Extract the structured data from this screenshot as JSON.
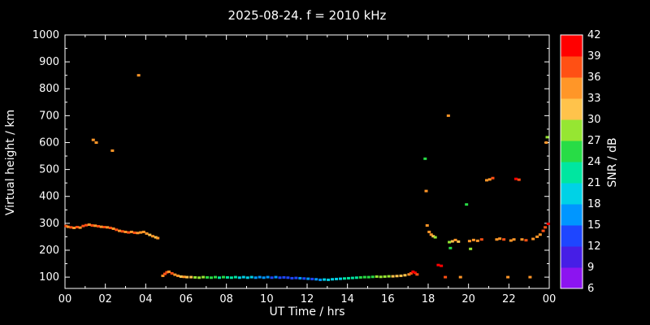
{
  "title": "2025-08-24. f = 2010 kHz",
  "axes": {
    "x_label": "UT Time / hrs",
    "y_label": "Virtual height / km",
    "x_ticks": [
      "00",
      "02",
      "04",
      "06",
      "08",
      "10",
      "12",
      "14",
      "16",
      "18",
      "20",
      "22",
      "00"
    ],
    "y_ticks": [
      "100",
      "200",
      "300",
      "400",
      "500",
      "600",
      "700",
      "800",
      "900",
      "1000"
    ]
  },
  "colorbar": {
    "label": "SNR / dB",
    "ticks": [
      "6",
      "9",
      "12",
      "15",
      "18",
      "21",
      "24",
      "27",
      "30",
      "33",
      "36",
      "39",
      "42"
    ],
    "colors": [
      "#8c14f0",
      "#461ee6",
      "#1e46ff",
      "#0096ff",
      "#00d2e6",
      "#00e6a0",
      "#28dc46",
      "#96e632",
      "#ffc34b",
      "#ff9628",
      "#ff5014",
      "#ff0000"
    ]
  },
  "chart_data": {
    "type": "scatter",
    "title": "2025-08-24. f = 2010 kHz",
    "xlabel": "UT Time / hrs",
    "ylabel": "Virtual height / km",
    "color_label": "SNR / dB",
    "x_range": [
      0,
      24
    ],
    "y_range": [
      58,
      1000
    ],
    "color_range": [
      6,
      42
    ],
    "background": "#000000",
    "points_t_h_snr": [
      [
        0.05,
        290,
        36
      ],
      [
        0.15,
        287,
        33
      ],
      [
        0.3,
        285,
        36
      ],
      [
        0.45,
        283,
        33
      ],
      [
        0.6,
        286,
        36
      ],
      [
        0.75,
        284,
        33
      ],
      [
        0.9,
        290,
        36
      ],
      [
        1.05,
        293,
        36
      ],
      [
        1.2,
        295,
        33
      ],
      [
        1.35,
        292,
        36
      ],
      [
        1.4,
        610,
        33
      ],
      [
        1.55,
        600,
        33
      ],
      [
        1.5,
        291,
        33
      ],
      [
        1.65,
        289,
        36
      ],
      [
        1.8,
        287,
        33
      ],
      [
        1.95,
        286,
        36
      ],
      [
        2.1,
        285,
        33
      ],
      [
        2.25,
        283,
        36
      ],
      [
        2.35,
        570,
        33
      ],
      [
        2.4,
        280,
        33
      ],
      [
        2.55,
        276,
        36
      ],
      [
        2.7,
        272,
        33
      ],
      [
        2.85,
        270,
        36
      ],
      [
        3.0,
        268,
        33
      ],
      [
        3.15,
        266,
        36
      ],
      [
        3.3,
        268,
        33
      ],
      [
        3.45,
        265,
        36
      ],
      [
        3.6,
        264,
        33
      ],
      [
        3.65,
        850,
        33
      ],
      [
        3.75,
        266,
        33
      ],
      [
        3.9,
        268,
        33
      ],
      [
        4.05,
        262,
        33
      ],
      [
        4.2,
        257,
        30
      ],
      [
        4.35,
        252,
        33
      ],
      [
        4.5,
        248,
        30
      ],
      [
        4.6,
        245,
        33
      ],
      [
        4.85,
        105,
        33
      ],
      [
        4.95,
        112,
        36
      ],
      [
        5.05,
        118,
        36
      ],
      [
        5.15,
        120,
        33
      ],
      [
        5.3,
        114,
        36
      ],
      [
        5.45,
        109,
        33
      ],
      [
        5.6,
        105,
        33
      ],
      [
        5.75,
        102,
        30
      ],
      [
        5.9,
        101,
        33
      ],
      [
        6.05,
        100,
        30
      ],
      [
        6.25,
        100,
        30
      ],
      [
        6.45,
        99,
        27
      ],
      [
        6.65,
        98,
        27
      ],
      [
        6.85,
        100,
        27
      ],
      [
        7.05,
        99,
        24
      ],
      [
        7.25,
        98,
        24
      ],
      [
        7.45,
        100,
        24
      ],
      [
        7.65,
        98,
        21
      ],
      [
        7.85,
        100,
        24
      ],
      [
        8.05,
        99,
        21
      ],
      [
        8.25,
        98,
        21
      ],
      [
        8.45,
        100,
        21
      ],
      [
        8.65,
        98,
        18
      ],
      [
        8.85,
        100,
        18
      ],
      [
        9.05,
        98,
        18
      ],
      [
        9.25,
        100,
        18
      ],
      [
        9.45,
        98,
        15
      ],
      [
        9.65,
        100,
        15
      ],
      [
        9.85,
        98,
        15
      ],
      [
        10.05,
        100,
        15
      ],
      [
        10.25,
        98,
        12
      ],
      [
        10.45,
        100,
        15
      ],
      [
        10.65,
        98,
        12
      ],
      [
        10.85,
        99,
        12
      ],
      [
        11.05,
        98,
        12
      ],
      [
        11.25,
        96,
        12
      ],
      [
        11.45,
        97,
        12
      ],
      [
        11.65,
        96,
        15
      ],
      [
        11.85,
        95,
        12
      ],
      [
        12.05,
        94,
        15
      ],
      [
        12.25,
        93,
        12
      ],
      [
        12.45,
        92,
        15
      ],
      [
        12.65,
        90,
        15
      ],
      [
        12.85,
        91,
        18
      ],
      [
        13.05,
        90,
        18
      ],
      [
        13.25,
        92,
        18
      ],
      [
        13.45,
        93,
        18
      ],
      [
        13.65,
        94,
        18
      ],
      [
        13.85,
        95,
        21
      ],
      [
        14.05,
        96,
        21
      ],
      [
        14.25,
        97,
        21
      ],
      [
        14.45,
        98,
        21
      ],
      [
        14.65,
        99,
        24
      ],
      [
        14.85,
        100,
        24
      ],
      [
        15.05,
        100,
        24
      ],
      [
        15.25,
        101,
        24
      ],
      [
        15.45,
        102,
        27
      ],
      [
        15.65,
        101,
        27
      ],
      [
        15.85,
        102,
        27
      ],
      [
        16.05,
        103,
        27
      ],
      [
        16.25,
        103,
        30
      ],
      [
        16.45,
        104,
        30
      ],
      [
        16.65,
        105,
        30
      ],
      [
        16.85,
        107,
        30
      ],
      [
        17.05,
        110,
        33
      ],
      [
        17.15,
        114,
        36
      ],
      [
        17.25,
        120,
        39
      ],
      [
        17.35,
        116,
        39
      ],
      [
        17.45,
        110,
        36
      ],
      [
        17.85,
        540,
        24
      ],
      [
        17.9,
        420,
        33
      ],
      [
        17.95,
        292,
        33
      ],
      [
        18.05,
        268,
        33
      ],
      [
        18.15,
        258,
        33
      ],
      [
        18.25,
        252,
        30
      ],
      [
        18.35,
        248,
        27
      ],
      [
        18.5,
        145,
        39
      ],
      [
        18.65,
        142,
        39
      ],
      [
        18.85,
        100,
        36
      ],
      [
        19.0,
        700,
        33
      ],
      [
        19.05,
        230,
        27
      ],
      [
        19.1,
        208,
        24
      ],
      [
        19.2,
        233,
        30
      ],
      [
        19.35,
        238,
        33
      ],
      [
        19.5,
        232,
        30
      ],
      [
        19.6,
        100,
        33
      ],
      [
        19.9,
        370,
        24
      ],
      [
        20.05,
        234,
        33
      ],
      [
        20.1,
        205,
        27
      ],
      [
        20.25,
        238,
        33
      ],
      [
        20.45,
        235,
        33
      ],
      [
        20.65,
        240,
        36
      ],
      [
        20.9,
        460,
        33
      ],
      [
        21.05,
        463,
        33
      ],
      [
        21.2,
        468,
        36
      ],
      [
        21.4,
        240,
        33
      ],
      [
        21.55,
        243,
        33
      ],
      [
        21.75,
        240,
        36
      ],
      [
        21.95,
        100,
        33
      ],
      [
        22.1,
        236,
        33
      ],
      [
        22.25,
        240,
        33
      ],
      [
        22.35,
        465,
        39
      ],
      [
        22.5,
        462,
        36
      ],
      [
        22.65,
        240,
        33
      ],
      [
        22.85,
        237,
        36
      ],
      [
        23.05,
        100,
        33
      ],
      [
        23.2,
        242,
        33
      ],
      [
        23.4,
        250,
        33
      ],
      [
        23.55,
        258,
        33
      ],
      [
        23.7,
        272,
        36
      ],
      [
        23.8,
        285,
        36
      ],
      [
        23.85,
        600,
        33
      ],
      [
        23.9,
        620,
        27
      ],
      [
        23.95,
        298,
        39
      ]
    ]
  }
}
